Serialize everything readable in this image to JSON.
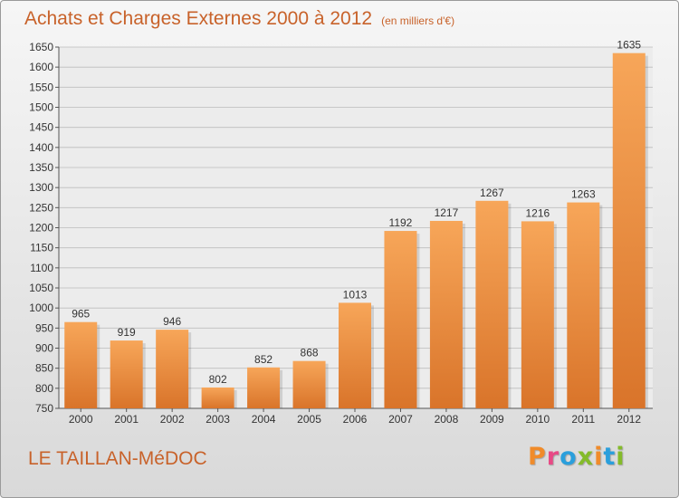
{
  "header": {
    "title": "Achats et Charges Externes 2000 à 2012",
    "unit": "(en milliers d'€)"
  },
  "footer": {
    "town": "LE TAILLAN-MéDOC",
    "brand": "Proxiti"
  },
  "colors": {
    "bar_light": "#f7a659",
    "bar_dark": "#d9742a",
    "title": "#c8622a",
    "brand_letters": [
      "#f08b2a",
      "#e84a86",
      "#2a9fdc",
      "#84bb2a",
      "#f08b2a",
      "#2a9fdc",
      "#84bb2a"
    ]
  },
  "chart_data": {
    "type": "bar",
    "title": "Achats et Charges Externes 2000 à 2012",
    "xlabel": "",
    "ylabel": "",
    "categories": [
      "2000",
      "2001",
      "2002",
      "2003",
      "2004",
      "2005",
      "2006",
      "2007",
      "2008",
      "2009",
      "2010",
      "2011",
      "2012"
    ],
    "values": [
      965,
      919,
      946,
      802,
      852,
      868,
      1013,
      1192,
      1217,
      1267,
      1216,
      1263,
      1635
    ],
    "ylim": [
      750,
      1650
    ],
    "yticks": [
      750,
      800,
      850,
      900,
      950,
      1000,
      1050,
      1100,
      1150,
      1200,
      1250,
      1300,
      1350,
      1400,
      1450,
      1500,
      1550,
      1600,
      1650
    ],
    "grid": true,
    "data_labels": true
  }
}
